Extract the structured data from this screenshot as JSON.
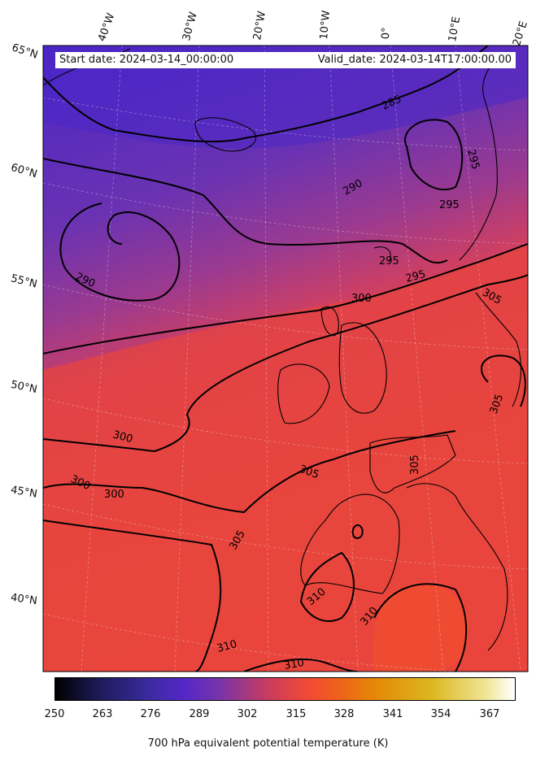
{
  "header": {
    "start_date": "Start date: 2024-03-14_00:00:00",
    "valid_date": "Valid_date: 2024-03-14T17:00:00.00"
  },
  "longitude_labels": [
    "40°W",
    "30°W",
    "20°W",
    "10°W",
    "0°",
    "10°E",
    "20°E"
  ],
  "latitude_labels": [
    "65°N",
    "60°N",
    "55°N",
    "50°N",
    "45°N",
    "40°N"
  ],
  "contour_labels": [
    "285",
    "290",
    "290",
    "295",
    "295",
    "295",
    "295",
    "300",
    "300",
    "300",
    "305",
    "305",
    "305",
    "305",
    "305",
    "310",
    "310",
    "310",
    "310"
  ],
  "colorbar": {
    "ticks": [
      "250",
      "263",
      "276",
      "289",
      "302",
      "315",
      "328",
      "341",
      "354",
      "367"
    ],
    "label": "700 hPa equivalent potential temperature (K)",
    "colormap": "CMRmap",
    "range": [
      250,
      376
    ]
  },
  "colors": {
    "cold": "#4d28c4",
    "mid": "#8a38a0",
    "warm": "#ef4434",
    "contour": "#000000",
    "coast": "#000000"
  }
}
